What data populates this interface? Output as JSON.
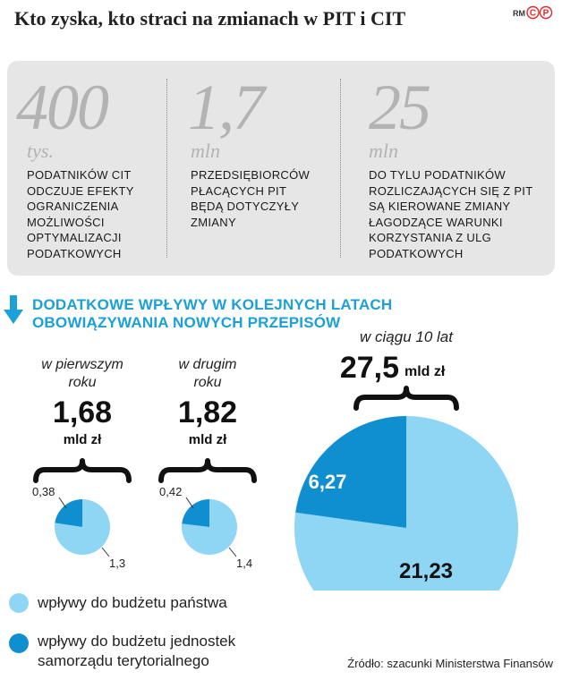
{
  "header": {
    "title": "Kto zyska, kto straci na zmianach w PIT i CIT",
    "credit": "RM"
  },
  "stats": [
    {
      "number": "400",
      "unit": "tys.",
      "lines": [
        "PODATNIKÓW CIT",
        "ODCZUJE EFEKTY",
        "OGRANICZENIA",
        "MOŻLIWOŚCI",
        "OPTYMALIZACJI",
        "PODATKOWYCH"
      ]
    },
    {
      "number": "1,7",
      "unit": "mln",
      "lines": [
        "PRZEDSIĘBIORCÓW",
        "PŁACĄCYCH PIT",
        "BĘDĄ DOTYCZYŁY",
        "ZMIANY"
      ]
    },
    {
      "number": "25",
      "unit": "mln",
      "lines": [
        "DO TYLU PODATNIKÓW",
        "ROZLICZAJĄCYCH SIĘ Z PIT",
        "SĄ KIEROWANE ZMIANY",
        "ŁAGODZĄCE  WARUNKI",
        "KORZYSTANIA Z ULG",
        "PODATKOWYCH"
      ]
    }
  ],
  "section_heading": [
    "DODATKOWE WPŁYWY W KOLEJNYCH LATACH",
    "OBOWIĄZYWANIA NOWYCH PRZEPISÓW"
  ],
  "colors": {
    "state_budget": "#8fd6f4",
    "local_gov": "#0f8fd0",
    "heading": "#1ba0d8",
    "stat_number": "#b3b3b3",
    "box": "#e6e6e6"
  },
  "chart_data": [
    {
      "type": "pie",
      "period_lines": [
        "w pierwszym",
        "roku"
      ],
      "total": "1,68",
      "total_unit": "mld zł",
      "slices": [
        {
          "name": "wpływy do budżetu państwa",
          "value": 1.3,
          "label": "1,3"
        },
        {
          "name": "wpływy do budżetu jednostek samorządu terytorialnego",
          "value": 0.38,
          "label": "0,38"
        }
      ]
    },
    {
      "type": "pie",
      "period_lines": [
        "w drugim",
        "roku"
      ],
      "total": "1,82",
      "total_unit": "mld zł",
      "slices": [
        {
          "name": "wpływy do budżetu państwa",
          "value": 1.4,
          "label": "1,4"
        },
        {
          "name": "wpływy do budżetu jednostek samorządu terytorialnego",
          "value": 0.42,
          "label": "0,42"
        }
      ]
    },
    {
      "type": "pie",
      "period_lines": [
        "w ciągu 10 lat"
      ],
      "total": "27,5",
      "total_unit": "mld zł",
      "slices": [
        {
          "name": "wpływy do budżetu państwa",
          "value": 21.23,
          "label": "21,23"
        },
        {
          "name": "wpływy do budżetu jednostek samorządu terytorialnego",
          "value": 6.27,
          "label": "6,27"
        }
      ]
    }
  ],
  "legend": [
    {
      "lines": [
        "wpływy do budżetu państwa"
      ]
    },
    {
      "lines": [
        "wpływy do budżetu jednostek",
        "samorządu terytorialnego"
      ]
    }
  ],
  "source": "Źródło: szacunki Ministerstwa Finansów"
}
